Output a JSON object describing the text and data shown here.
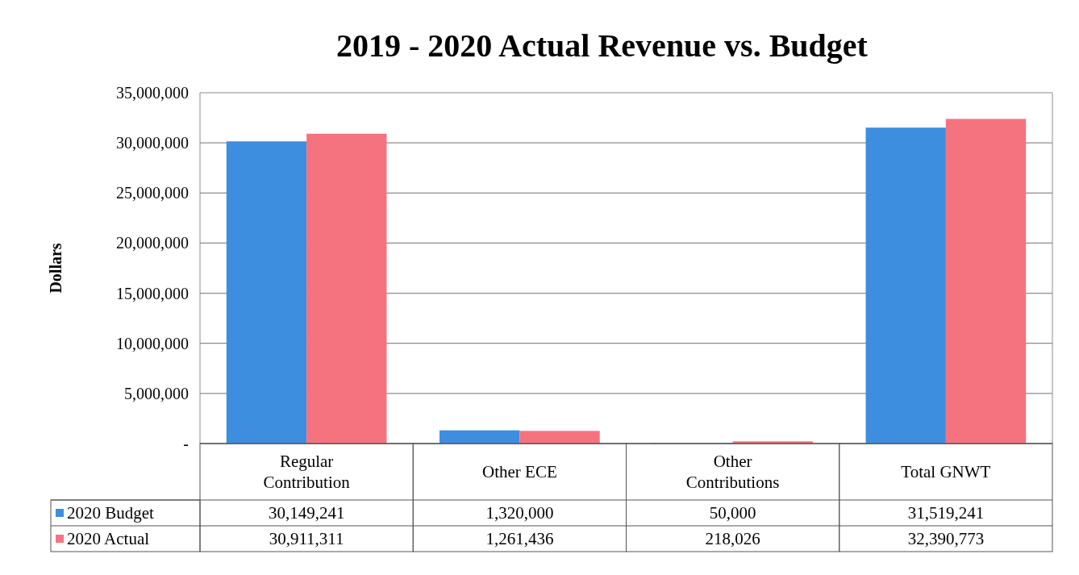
{
  "chart_data": {
    "type": "bar",
    "title": "2019 - 2020 Actual Revenue vs. Budget",
    "ylabel": "Dollars",
    "categories": [
      "Regular Contribution",
      "Other ECE",
      "Other Contributions",
      "Total GNWT"
    ],
    "series": [
      {
        "name": "2020 Budget",
        "color": "#3d8ede",
        "values": [
          30149241,
          1320000,
          50000,
          31519241
        ],
        "value_labels": [
          "30,149,241",
          "1,320,000",
          "50,000",
          "31,519,241"
        ]
      },
      {
        "name": "2020 Actual",
        "color": "#f5727f",
        "values": [
          30911311,
          1261436,
          218026,
          32390773
        ],
        "value_labels": [
          "30,911,311",
          "1,261,436",
          "218,026",
          "32,390,773"
        ]
      }
    ],
    "ylim": [
      0,
      35000000
    ],
    "yticks": [
      {
        "value": 0,
        "label": "-"
      },
      {
        "value": 5000000,
        "label": "5,000,000"
      },
      {
        "value": 10000000,
        "label": "10,000,000"
      },
      {
        "value": 15000000,
        "label": "15,000,000"
      },
      {
        "value": 20000000,
        "label": "20,000,000"
      },
      {
        "value": 25000000,
        "label": "25,000,000"
      },
      {
        "value": 30000000,
        "label": "30,000,000"
      },
      {
        "value": 35000000,
        "label": "35,000,000"
      }
    ],
    "grid": "y",
    "legend": "bottom"
  }
}
